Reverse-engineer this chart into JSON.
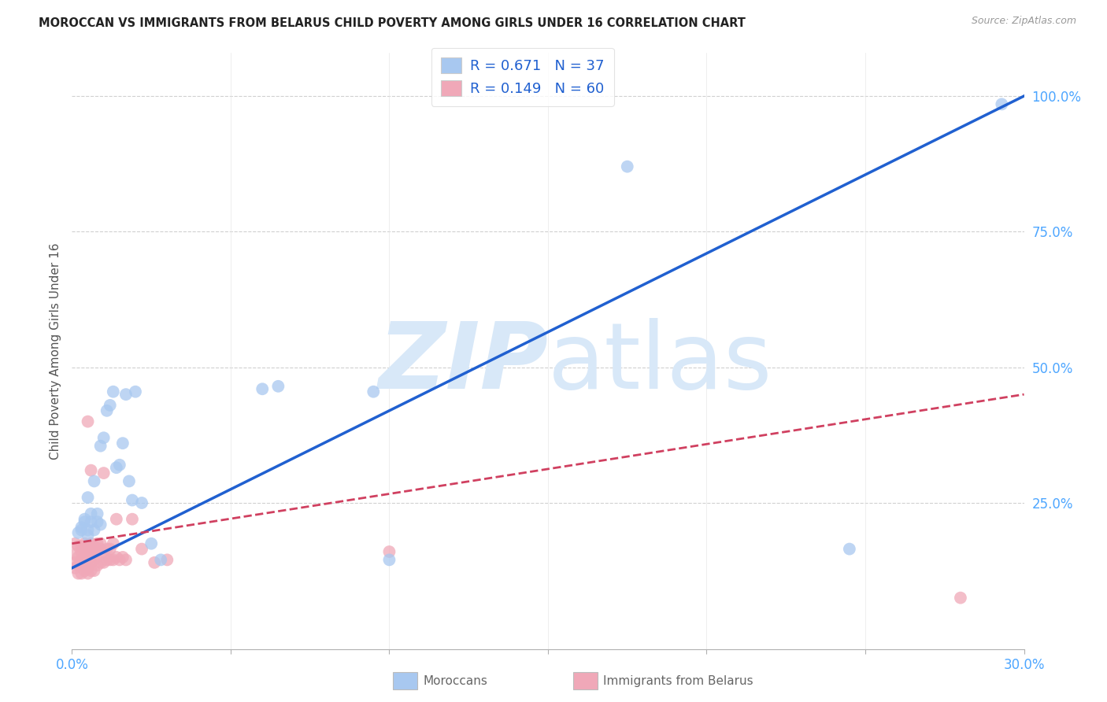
{
  "title": "MOROCCAN VS IMMIGRANTS FROM BELARUS CHILD POVERTY AMONG GIRLS UNDER 16 CORRELATION CHART",
  "source": "Source: ZipAtlas.com",
  "ylabel": "Child Poverty Among Girls Under 16",
  "xlim": [
    0.0,
    0.3
  ],
  "ylim": [
    -0.02,
    1.08
  ],
  "xticks": [
    0.0,
    0.05,
    0.1,
    0.15,
    0.2,
    0.25,
    0.3
  ],
  "yticks": [
    0.0,
    0.25,
    0.5,
    0.75,
    1.0
  ],
  "ytick_labels": [
    "",
    "25.0%",
    "50.0%",
    "75.0%",
    "100.0%"
  ],
  "R_blue": 0.671,
  "N_blue": 37,
  "R_pink": 0.149,
  "N_pink": 60,
  "blue_color": "#a8c8f0",
  "pink_color": "#f0a8b8",
  "blue_line_color": "#2060d0",
  "pink_line_color": "#d04060",
  "axis_color": "#4da6ff",
  "watermark_color": "#d8e8f8",
  "blue_line_x": [
    0.0,
    0.3
  ],
  "blue_line_y": [
    0.13,
    1.0
  ],
  "pink_line_x": [
    0.0,
    0.3
  ],
  "pink_line_y": [
    0.175,
    0.45
  ],
  "blue_scatter_x": [
    0.002,
    0.003,
    0.003,
    0.004,
    0.004,
    0.005,
    0.005,
    0.005,
    0.006,
    0.006,
    0.007,
    0.007,
    0.008,
    0.008,
    0.009,
    0.009,
    0.01,
    0.011,
    0.012,
    0.013,
    0.014,
    0.015,
    0.016,
    0.017,
    0.018,
    0.019,
    0.02,
    0.022,
    0.025,
    0.028,
    0.06,
    0.065,
    0.095,
    0.1,
    0.175,
    0.245,
    0.293
  ],
  "blue_scatter_y": [
    0.195,
    0.2,
    0.205,
    0.215,
    0.22,
    0.19,
    0.2,
    0.26,
    0.215,
    0.23,
    0.2,
    0.29,
    0.215,
    0.23,
    0.21,
    0.355,
    0.37,
    0.42,
    0.43,
    0.455,
    0.315,
    0.32,
    0.36,
    0.45,
    0.29,
    0.255,
    0.455,
    0.25,
    0.175,
    0.145,
    0.46,
    0.465,
    0.455,
    0.145,
    0.87,
    0.165,
    0.985
  ],
  "pink_scatter_x": [
    0.001,
    0.001,
    0.001,
    0.001,
    0.002,
    0.002,
    0.002,
    0.002,
    0.003,
    0.003,
    0.003,
    0.003,
    0.003,
    0.004,
    0.004,
    0.004,
    0.004,
    0.004,
    0.005,
    0.005,
    0.005,
    0.005,
    0.005,
    0.005,
    0.006,
    0.006,
    0.006,
    0.006,
    0.006,
    0.006,
    0.007,
    0.007,
    0.007,
    0.007,
    0.008,
    0.008,
    0.008,
    0.009,
    0.009,
    0.009,
    0.01,
    0.01,
    0.01,
    0.011,
    0.011,
    0.012,
    0.012,
    0.013,
    0.013,
    0.014,
    0.014,
    0.015,
    0.016,
    0.017,
    0.019,
    0.022,
    0.026,
    0.03,
    0.1,
    0.28
  ],
  "pink_scatter_y": [
    0.13,
    0.14,
    0.155,
    0.175,
    0.12,
    0.135,
    0.15,
    0.17,
    0.12,
    0.135,
    0.145,
    0.16,
    0.17,
    0.125,
    0.14,
    0.15,
    0.165,
    0.175,
    0.12,
    0.13,
    0.145,
    0.155,
    0.165,
    0.4,
    0.125,
    0.14,
    0.155,
    0.165,
    0.175,
    0.31,
    0.125,
    0.145,
    0.16,
    0.17,
    0.135,
    0.16,
    0.175,
    0.14,
    0.165,
    0.175,
    0.14,
    0.16,
    0.305,
    0.145,
    0.165,
    0.145,
    0.165,
    0.145,
    0.175,
    0.15,
    0.22,
    0.145,
    0.15,
    0.145,
    0.22,
    0.165,
    0.14,
    0.145,
    0.16,
    0.075
  ]
}
